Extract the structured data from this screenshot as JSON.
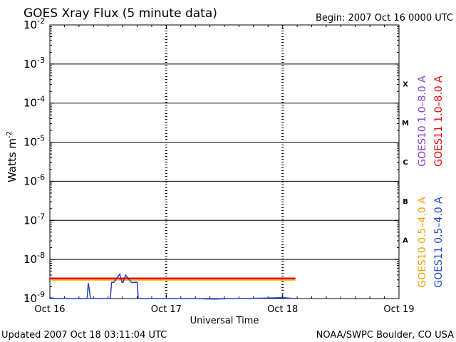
{
  "chart_data": {
    "type": "line",
    "title": "GOES Xray Flux (5 minute data)",
    "begin_label": "Begin:  2007 Oct 16 0000 UTC",
    "ylabel": "Watts m",
    "ylabel_exponent": "-2",
    "xlabel": "Universal Time",
    "y_scale": "log",
    "ylim": [
      1e-09,
      0.01
    ],
    "xlim_days": [
      0,
      3
    ],
    "x_ticks": [
      "Oct 16",
      "Oct 17",
      "Oct 18",
      "Oct 19"
    ],
    "y_tick_exponents": [
      "-2",
      "-3",
      "-4",
      "-5",
      "-6",
      "-7",
      "-8",
      "-9"
    ],
    "flare_classes": [
      "X",
      "M",
      "C",
      "B",
      "A"
    ],
    "grid": true,
    "series": [
      {
        "name": "GOES10 1.0–8.0 A",
        "color": "#7f3fbf",
        "x_days": [
          0.0,
          2.11
        ],
        "y": [
          3.3e-09,
          3.3e-09
        ]
      },
      {
        "name": "GOES11 1.0–8.0 A",
        "color": "#e00000",
        "x_days": [
          0.0,
          2.11
        ],
        "y": [
          3.3e-09,
          3.3e-09
        ]
      },
      {
        "name": "GOES10 0.5–4.0 A",
        "color": "#f0a000",
        "x_days": [
          0.0,
          2.11
        ],
        "y": [
          3e-09,
          3e-09
        ]
      },
      {
        "name": "GOES11 0.5–4.0 A",
        "color": "#1f3fd0",
        "x_days": [
          0.0,
          0.05,
          0.1,
          0.2,
          0.3,
          0.32,
          0.33,
          0.35,
          0.5,
          0.52,
          0.53,
          0.55,
          0.6,
          0.62,
          0.63,
          0.65,
          0.7,
          0.72,
          0.73,
          0.75,
          0.76,
          0.8,
          0.9,
          1.0,
          1.2,
          1.4,
          1.6,
          1.8,
          2.0,
          2.11
        ],
        "y": [
          1.05e-09,
          1e-09,
          1e-09,
          1e-09,
          1e-09,
          1e-09,
          2.5e-09,
          1e-09,
          1e-09,
          1e-09,
          2.6e-09,
          2.6e-09,
          4.2e-09,
          2.6e-09,
          2.6e-09,
          4e-09,
          2.6e-09,
          2.6e-09,
          2.6e-09,
          2.6e-09,
          1e-09,
          1e-09,
          1e-09,
          1e-09,
          1e-09,
          9.7e-10,
          1e-09,
          1.02e-09,
          1.05e-09,
          1e-09
        ]
      }
    ]
  },
  "footer": {
    "updated": "Updated 2007 Oct 18 03:11:04 UTC",
    "credit": "NOAA/SWPC Boulder, CO USA"
  }
}
